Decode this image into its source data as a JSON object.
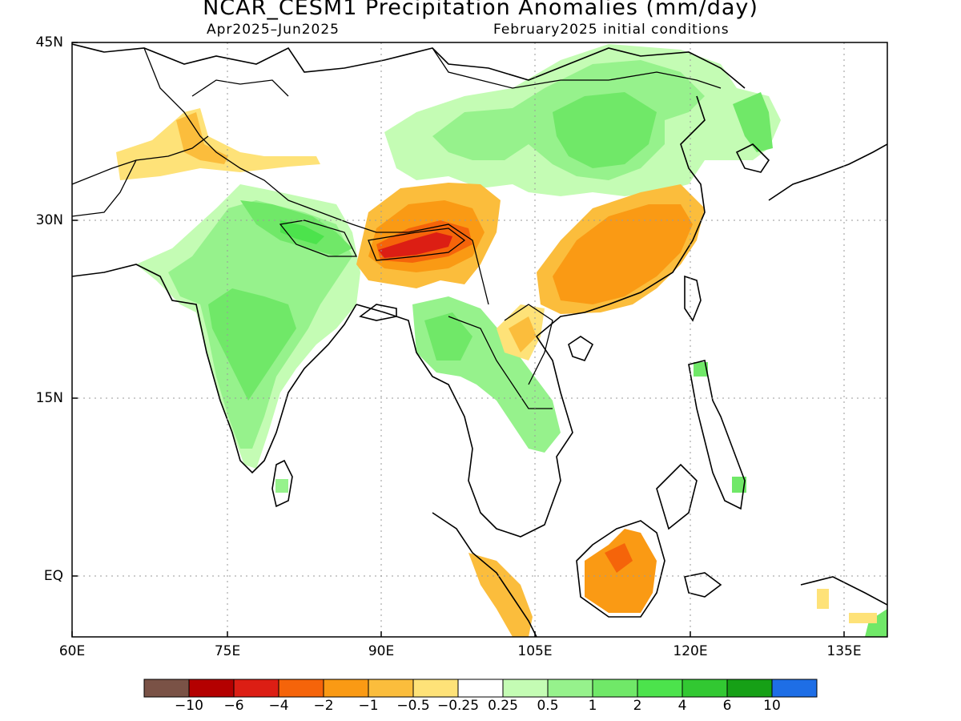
{
  "title": "NCAR_CESM1 Precipitation Anomalies (mm/day)",
  "subtitle_left": "Apr2025–Jun2025",
  "subtitle_right": "February2025 initial conditions",
  "lat_labels": [
    "45N",
    "30N",
    "15N",
    "EQ"
  ],
  "lon_labels": [
    "60E",
    "75E",
    "90E",
    "105E",
    "120E",
    "135E"
  ],
  "colorbar": {
    "colors": [
      "#7a5246",
      "#b40000",
      "#dc1e14",
      "#f5640a",
      "#fa9a14",
      "#fbbd3c",
      "#fee278",
      "#ffffff",
      "#c4fcb4",
      "#96f28c",
      "#70e868",
      "#4ce34c",
      "#32c832",
      "#16a016",
      "#1e6ee6"
    ],
    "labels": [
      "−10",
      "−6",
      "−4",
      "−2",
      "−1",
      "−0.5",
      "−0.25",
      "0.25",
      "0.5",
      "1",
      "2",
      "4",
      "6",
      "10"
    ]
  }
}
